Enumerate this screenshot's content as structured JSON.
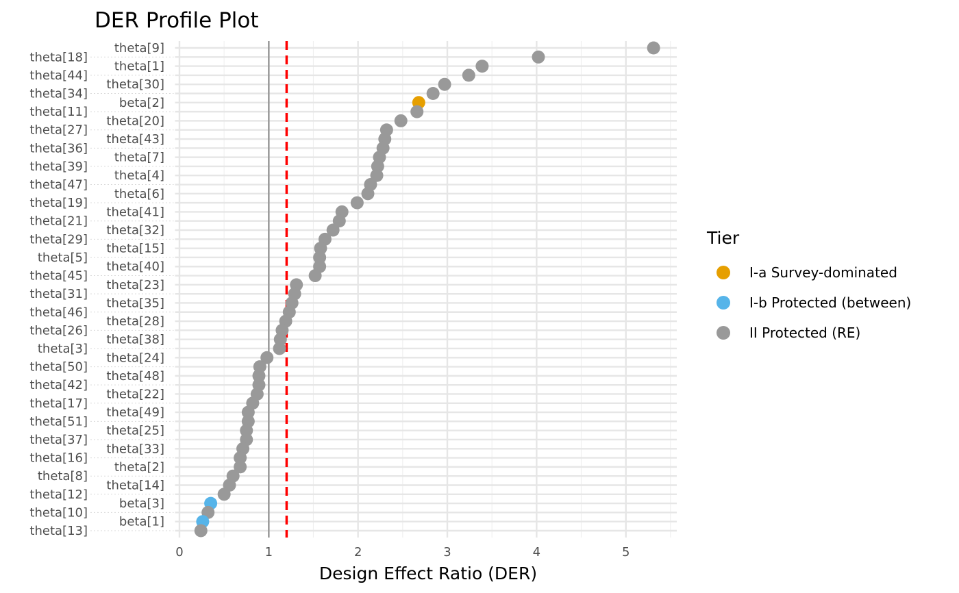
{
  "chart_data": {
    "type": "scatter",
    "title": "DER Profile Plot",
    "xlabel": "Design Effect Ratio (DER)",
    "ylabel": "",
    "xlim": [
      -0.05,
      5.57
    ],
    "xticks": [
      0,
      1,
      2,
      3,
      4,
      5
    ],
    "grid": true,
    "reference_lines": [
      {
        "x": 1,
        "style": "solid",
        "color": "#999999"
      },
      {
        "x": 1.2,
        "style": "dashed",
        "color": "#FF0000"
      }
    ],
    "legend": {
      "title": "Tier",
      "placement": "right",
      "entries": [
        {
          "label": "I-a Survey-dominated",
          "color": "#E69F00"
        },
        {
          "label": "I-b Protected (between)",
          "color": "#56B4E9"
        },
        {
          "label": "II Protected (RE)",
          "color": "#999999"
        }
      ]
    },
    "points": [
      {
        "param": "theta[9]",
        "der": 5.31,
        "tier": 2
      },
      {
        "param": "theta[18]",
        "der": 4.02,
        "tier": 2
      },
      {
        "param": "theta[1]",
        "der": 3.39,
        "tier": 2
      },
      {
        "param": "theta[44]",
        "der": 3.24,
        "tier": 2
      },
      {
        "param": "theta[30]",
        "der": 2.97,
        "tier": 2
      },
      {
        "param": "theta[34]",
        "der": 2.84,
        "tier": 2
      },
      {
        "param": "beta[2]",
        "der": 2.68,
        "tier": 0
      },
      {
        "param": "theta[11]",
        "der": 2.66,
        "tier": 2
      },
      {
        "param": "theta[20]",
        "der": 2.48,
        "tier": 2
      },
      {
        "param": "theta[27]",
        "der": 2.32,
        "tier": 2
      },
      {
        "param": "theta[43]",
        "der": 2.3,
        "tier": 2
      },
      {
        "param": "theta[36]",
        "der": 2.28,
        "tier": 2
      },
      {
        "param": "theta[7]",
        "der": 2.24,
        "tier": 2
      },
      {
        "param": "theta[39]",
        "der": 2.22,
        "tier": 2
      },
      {
        "param": "theta[4]",
        "der": 2.21,
        "tier": 2
      },
      {
        "param": "theta[47]",
        "der": 2.14,
        "tier": 2
      },
      {
        "param": "theta[6]",
        "der": 2.11,
        "tier": 2
      },
      {
        "param": "theta[19]",
        "der": 1.99,
        "tier": 2
      },
      {
        "param": "theta[41]",
        "der": 1.82,
        "tier": 2
      },
      {
        "param": "theta[21]",
        "der": 1.79,
        "tier": 2
      },
      {
        "param": "theta[32]",
        "der": 1.72,
        "tier": 2
      },
      {
        "param": "theta[29]",
        "der": 1.63,
        "tier": 2
      },
      {
        "param": "theta[15]",
        "der": 1.58,
        "tier": 2
      },
      {
        "param": "theta[5]",
        "der": 1.57,
        "tier": 2
      },
      {
        "param": "theta[40]",
        "der": 1.57,
        "tier": 2
      },
      {
        "param": "theta[45]",
        "der": 1.52,
        "tier": 2
      },
      {
        "param": "theta[23]",
        "der": 1.31,
        "tier": 2
      },
      {
        "param": "theta[31]",
        "der": 1.29,
        "tier": 2
      },
      {
        "param": "theta[35]",
        "der": 1.26,
        "tier": 2
      },
      {
        "param": "theta[46]",
        "der": 1.23,
        "tier": 2
      },
      {
        "param": "theta[28]",
        "der": 1.19,
        "tier": 2
      },
      {
        "param": "theta[26]",
        "der": 1.15,
        "tier": 2
      },
      {
        "param": "theta[38]",
        "der": 1.13,
        "tier": 2
      },
      {
        "param": "theta[3]",
        "der": 1.12,
        "tier": 2
      },
      {
        "param": "theta[24]",
        "der": 0.98,
        "tier": 2
      },
      {
        "param": "theta[50]",
        "der": 0.9,
        "tier": 2
      },
      {
        "param": "theta[48]",
        "der": 0.89,
        "tier": 2
      },
      {
        "param": "theta[42]",
        "der": 0.89,
        "tier": 2
      },
      {
        "param": "theta[22]",
        "der": 0.87,
        "tier": 2
      },
      {
        "param": "theta[17]",
        "der": 0.82,
        "tier": 2
      },
      {
        "param": "theta[49]",
        "der": 0.77,
        "tier": 2
      },
      {
        "param": "theta[51]",
        "der": 0.77,
        "tier": 2
      },
      {
        "param": "theta[25]",
        "der": 0.75,
        "tier": 2
      },
      {
        "param": "theta[37]",
        "der": 0.75,
        "tier": 2
      },
      {
        "param": "theta[33]",
        "der": 0.71,
        "tier": 2
      },
      {
        "param": "theta[16]",
        "der": 0.68,
        "tier": 2
      },
      {
        "param": "theta[2]",
        "der": 0.68,
        "tier": 2
      },
      {
        "param": "theta[8]",
        "der": 0.6,
        "tier": 2
      },
      {
        "param": "theta[14]",
        "der": 0.56,
        "tier": 2
      },
      {
        "param": "theta[12]",
        "der": 0.5,
        "tier": 2
      },
      {
        "param": "beta[3]",
        "der": 0.35,
        "tier": 1
      },
      {
        "param": "theta[10]",
        "der": 0.32,
        "tier": 2
      },
      {
        "param": "beta[1]",
        "der": 0.26,
        "tier": 1
      },
      {
        "param": "theta[13]",
        "der": 0.24,
        "tier": 2
      }
    ]
  }
}
